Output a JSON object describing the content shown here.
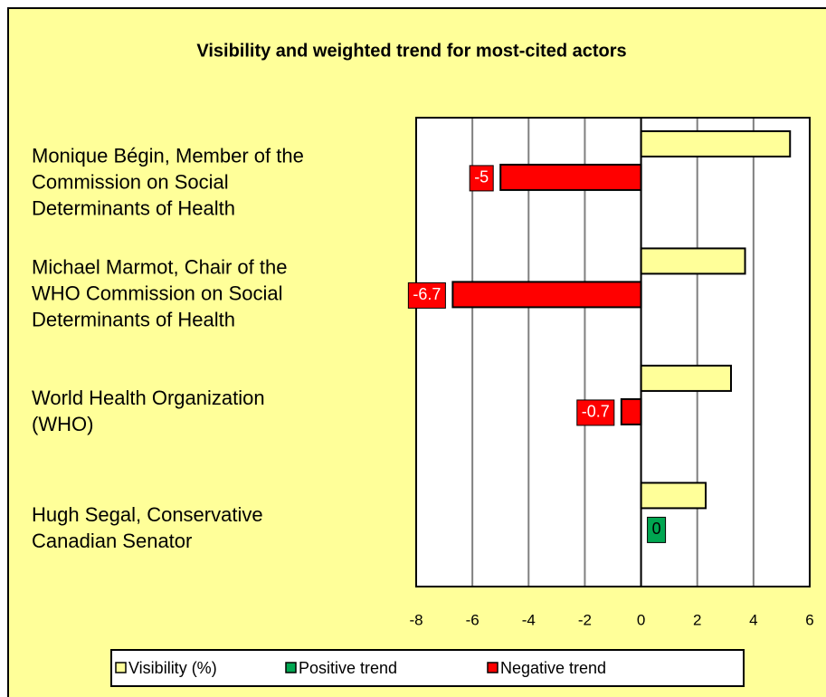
{
  "chart_data": {
    "type": "bar",
    "orientation": "horizontal",
    "title": "Visibility and weighted trend for most-cited actors",
    "categories": [
      "Monique Bégin, Member of the Commission on Social Determinants of Health",
      "Michael Marmot, Chair of the WHO Commission on Social Determinants of Health",
      "World Health Organization (WHO)",
      "Hugh Segal, Conservative Canadian Senator"
    ],
    "series": [
      {
        "name": "Visibility (%)",
        "color": "#ffff99",
        "values": [
          5.3,
          3.7,
          3.2,
          2.3
        ]
      },
      {
        "name": "Positive trend",
        "color": "#00a651",
        "values": [
          null,
          null,
          null,
          0
        ],
        "show_labels": true
      },
      {
        "name": "Negative trend",
        "color": "#ff0000",
        "values": [
          -5,
          -6.7,
          -0.7,
          null
        ],
        "show_labels": true
      }
    ],
    "xlim": [
      -8,
      6
    ],
    "xticks": [
      -8,
      -6,
      -4,
      -2,
      0,
      2,
      4,
      6
    ],
    "grid": true,
    "legend": "bottom"
  }
}
